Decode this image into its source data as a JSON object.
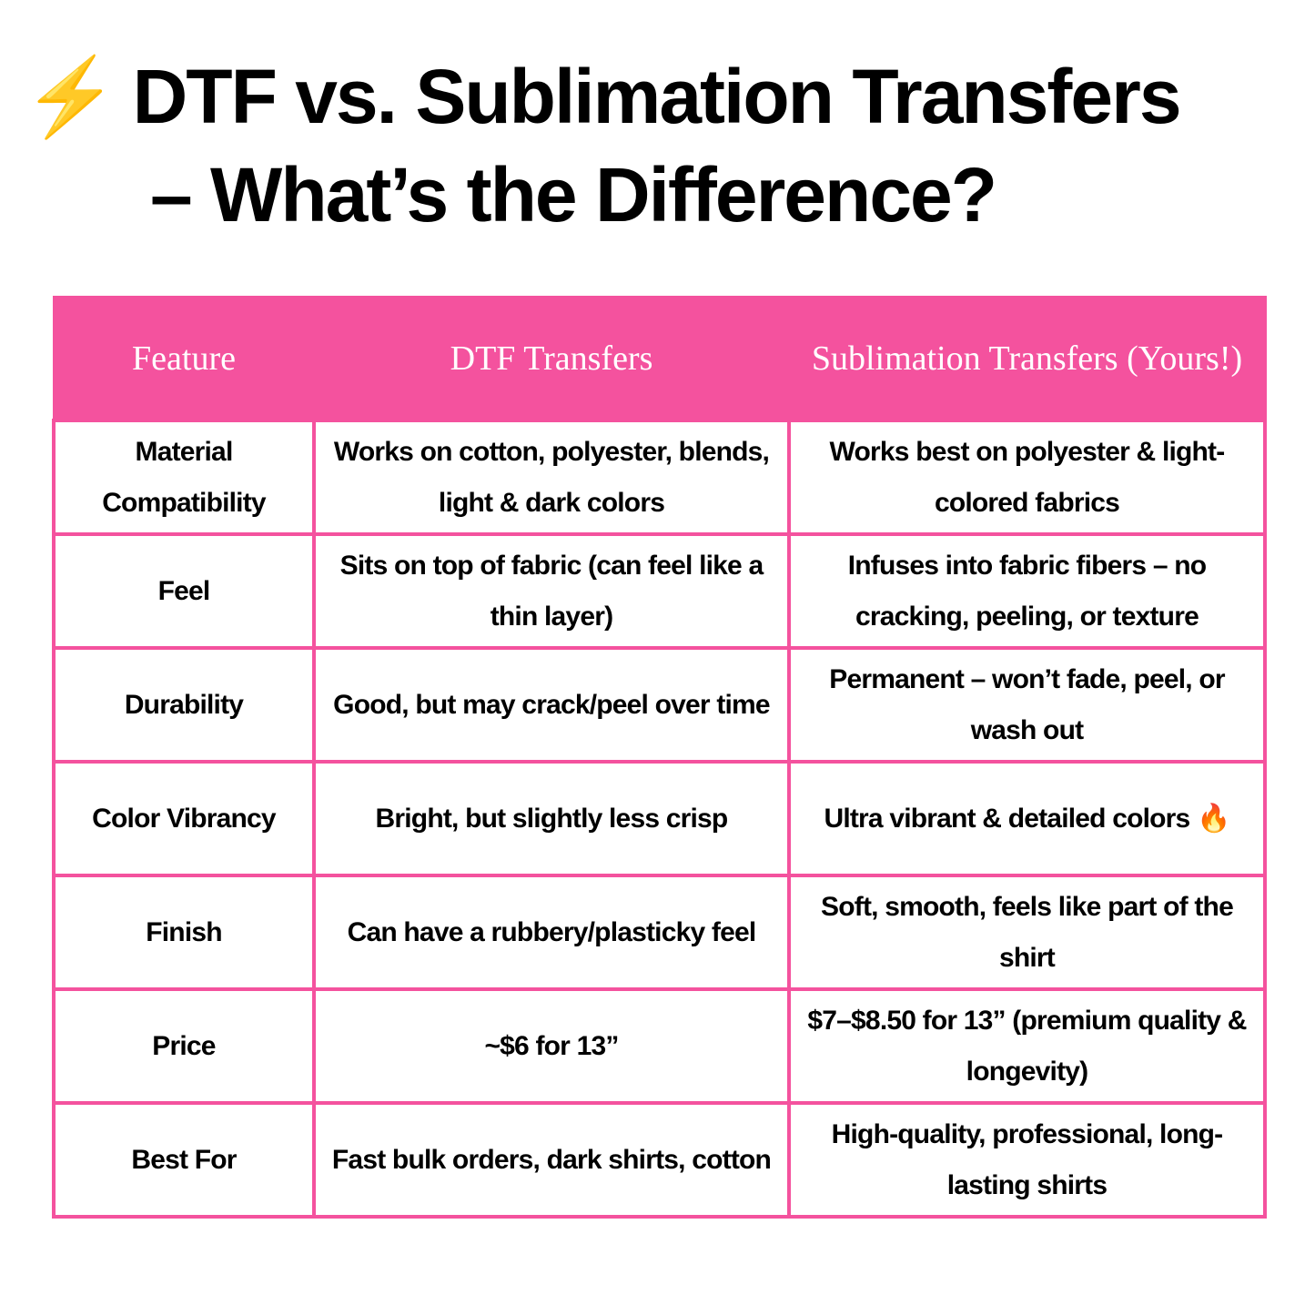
{
  "title": {
    "icon": "lightning-bolt-icon",
    "line1": "DTF vs. Sublimation Transfers",
    "line2": "– What’s the Difference?"
  },
  "colors": {
    "accent": "#F4529E",
    "bolt": "#F7B12B"
  },
  "table": {
    "headers": [
      "Feature",
      "DTF Transfers",
      "Sublimation Transfers (Yours!)"
    ],
    "rows": [
      {
        "feature": "Material Compatibility",
        "dtf": "Works on cotton, polyester, blends, light & dark colors",
        "sub": "Works best on polyester & light-colored fabrics"
      },
      {
        "feature": "Feel",
        "dtf": "Sits on top of fabric (can feel like a thin layer)",
        "sub": "Infuses into fabric fibers – no cracking, peeling, or texture"
      },
      {
        "feature": "Durability",
        "dtf": "Good, but may crack/peel over time",
        "sub": "Permanent – won’t fade, peel, or wash out"
      },
      {
        "feature": "Color Vibrancy",
        "dtf": "Bright, but slightly less crisp",
        "sub": "Ultra vibrant & detailed colors 🔥"
      },
      {
        "feature": "Finish",
        "dtf": "Can have a rubbery/plasticky feel",
        "sub": "Soft, smooth, feels like part of the shirt"
      },
      {
        "feature": "Price",
        "dtf": "~$6 for 13”",
        "sub": "$7–$8.50 for 13” (premium quality & longevity)"
      },
      {
        "feature": "Best For",
        "dtf": "Fast bulk orders, dark shirts, cotton",
        "sub": "High-quality, professional, long-lasting shirts"
      }
    ]
  }
}
